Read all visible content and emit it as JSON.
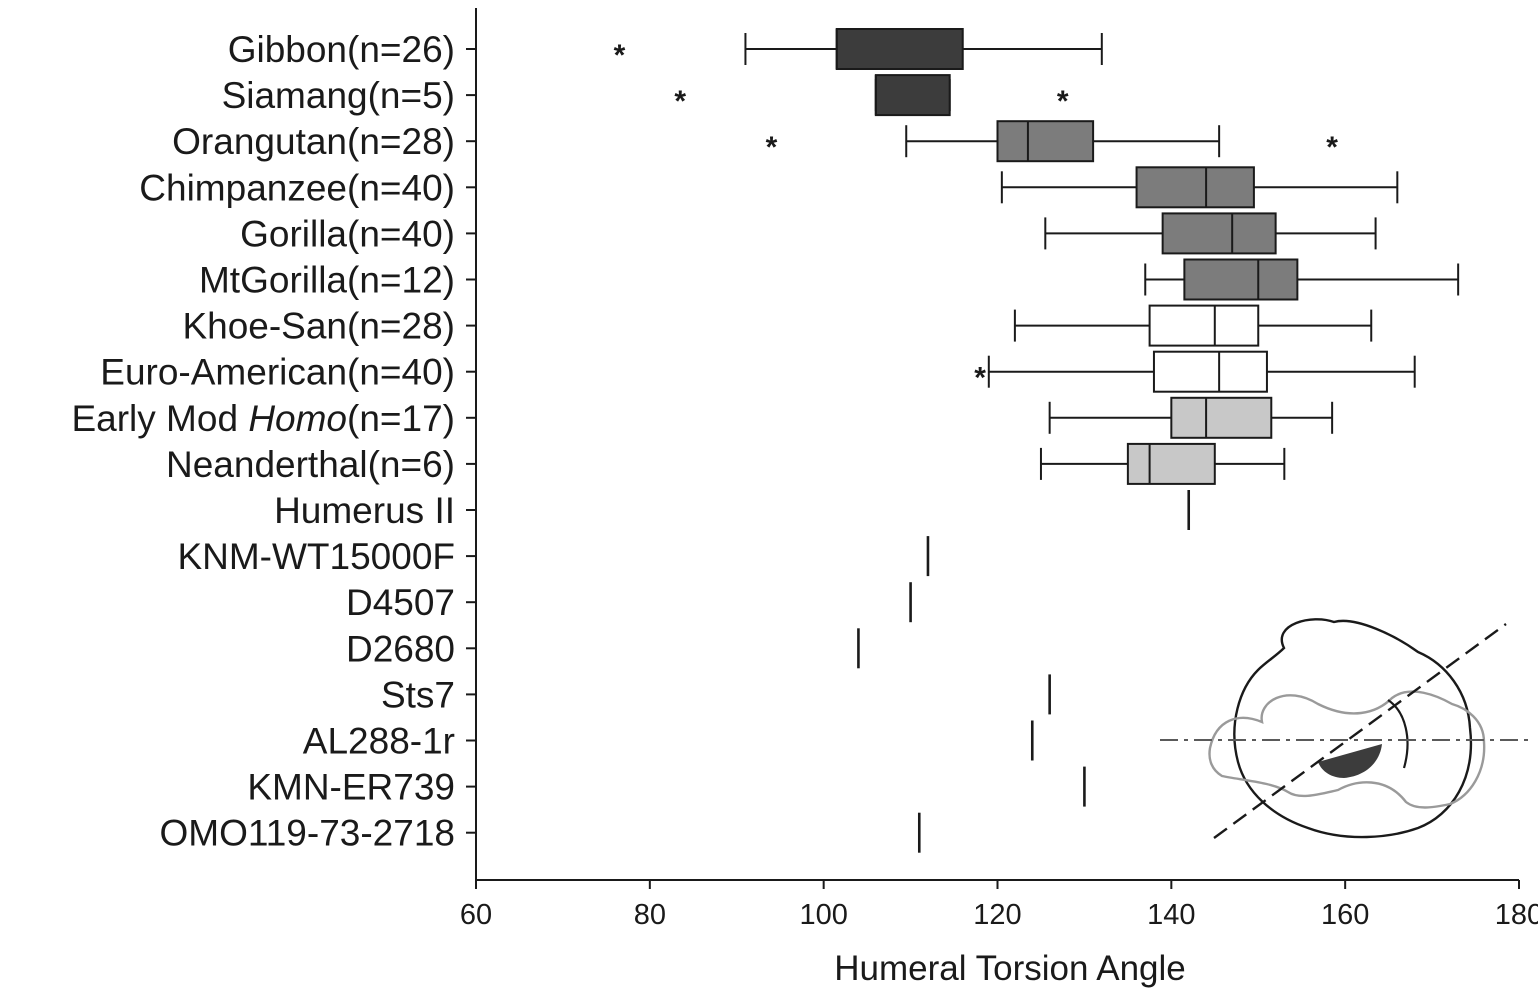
{
  "chart_data": {
    "type": "boxplot",
    "orientation": "horizontal",
    "xlabel": "Humeral Torsion Angle",
    "xlim": [
      60,
      180
    ],
    "xticks": [
      60,
      80,
      100,
      120,
      140,
      160,
      180
    ],
    "groups": [
      {
        "label": "Gibbon(n=26)",
        "min": 91,
        "q1": 101.5,
        "median": 101.5,
        "q3": 116,
        "max": 132,
        "outliers": [
          76.5
        ],
        "color": "#3c3c3c"
      },
      {
        "label": "Siamang(n=5)",
        "min": 106,
        "q1": 106,
        "median": 106,
        "q3": 114.5,
        "max": 114.5,
        "outliers": [
          83.5,
          127.5
        ],
        "color": "#3c3c3c"
      },
      {
        "label": "Orangutan(n=28)",
        "min": 109.5,
        "q1": 120,
        "median": 123.5,
        "q3": 131,
        "max": 145.5,
        "outliers": [
          94,
          158.5
        ],
        "color": "#7c7c7c"
      },
      {
        "label": "Chimpanzee(n=40)",
        "min": 120.5,
        "q1": 136,
        "median": 144,
        "q3": 149.5,
        "max": 166,
        "outliers": [],
        "color": "#7c7c7c"
      },
      {
        "label": "Gorilla(n=40)",
        "min": 125.5,
        "q1": 139,
        "median": 147,
        "q3": 152,
        "max": 163.5,
        "outliers": [],
        "color": "#7c7c7c"
      },
      {
        "label": "MtGorilla(n=12)",
        "min": 137,
        "q1": 141.5,
        "median": 150,
        "q3": 154.5,
        "max": 173,
        "outliers": [],
        "color": "#7c7c7c"
      },
      {
        "label": "Khoe-San(n=28)",
        "min": 122,
        "q1": 137.5,
        "median": 145,
        "q3": 150,
        "max": 163,
        "outliers": [],
        "color": "#ffffff"
      },
      {
        "label": "Euro-American(n=40)",
        "min": 119,
        "q1": 138,
        "median": 145.5,
        "q3": 151,
        "max": 168,
        "outliers": [
          118
        ],
        "color": "#ffffff"
      },
      {
        "label_parts": [
          "Early Mod ",
          "Homo",
          "(n=17)"
        ],
        "label": "Early Mod Homo(n=17)",
        "min": 126,
        "q1": 140,
        "median": 144,
        "q3": 151.5,
        "max": 158.5,
        "outliers": [],
        "color": "#c8c8c8"
      },
      {
        "label": "Neanderthal(n=6)",
        "min": 125,
        "q1": 135,
        "median": 137.5,
        "q3": 145,
        "max": 153,
        "outliers": [],
        "color": "#c8c8c8"
      }
    ],
    "specimens": [
      {
        "label": "Humerus II",
        "value": 142
      },
      {
        "label": "KNM-WT15000F",
        "value": 112
      },
      {
        "label": "D4507",
        "value": 110
      },
      {
        "label": "D2680",
        "value": 104
      },
      {
        "label": "Sts7",
        "value": 126
      },
      {
        "label": "AL288-1r",
        "value": 124
      },
      {
        "label": "KMN-ER739",
        "value": 130
      },
      {
        "label": "OMO119-73-2718",
        "value": 111
      }
    ],
    "outlier_symbol": "*"
  }
}
